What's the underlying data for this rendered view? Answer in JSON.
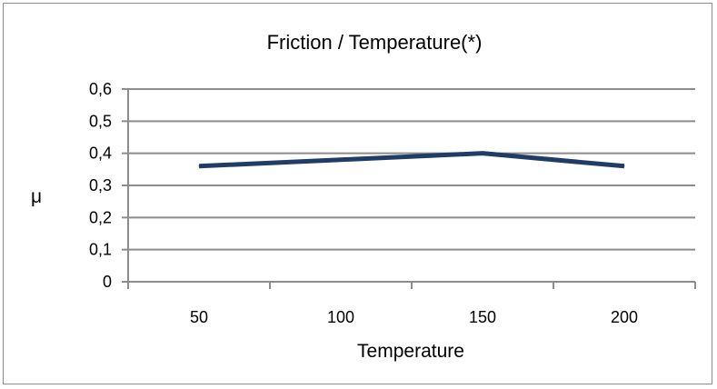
{
  "chart_data": {
    "type": "line",
    "title": "Friction / Temperature(*)",
    "xlabel": "Temperature",
    "ylabel": "μ",
    "categories": [
      "50",
      "100",
      "150",
      "200"
    ],
    "series": [
      {
        "values": [
          0.36,
          0.38,
          0.4,
          0.36
        ]
      }
    ],
    "ylim": [
      0,
      0.6
    ],
    "yticks": [
      "0",
      "0,1",
      "0,2",
      "0,3",
      "0,4",
      "0,5",
      "0,6"
    ],
    "grid": true,
    "legend": "none",
    "colors": {
      "line": "#1f3d66",
      "grid": "#8c8c8c",
      "axis": "#8c8c8c"
    }
  }
}
